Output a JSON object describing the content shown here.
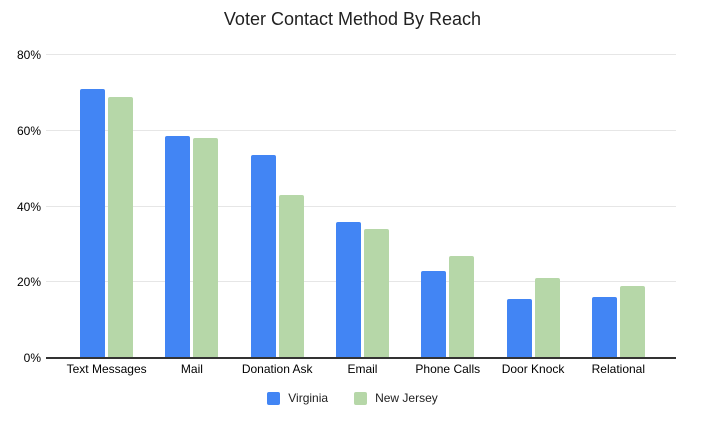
{
  "title": "Voter Contact Method By Reach",
  "colors": {
    "virginia": "#4285f4",
    "new_jersey": "#b6d7a8",
    "gridline": "#e6e6e6",
    "axis_line": "#333333",
    "text": "#000000",
    "title_text": "#212121"
  },
  "chart_data": {
    "type": "bar",
    "title": "Voter Contact Method By Reach",
    "categories": [
      "Text Messages",
      "Mail",
      "Donation Ask",
      "Email",
      "Phone Calls",
      "Door Knock",
      "Relational"
    ],
    "series": [
      {
        "name": "Virginia",
        "color": "#4285f4",
        "values": [
          71,
          58.5,
          53.5,
          36,
          23,
          15.5,
          16
        ]
      },
      {
        "name": "New Jersey",
        "color": "#b6d7a8",
        "values": [
          69,
          58,
          43,
          34,
          27,
          21,
          19
        ]
      }
    ],
    "xlabel": "",
    "ylabel": "",
    "ylim": [
      0,
      80
    ],
    "ytick_values": [
      0,
      20,
      40,
      60,
      80
    ],
    "ytick_labels": [
      "0%",
      "20%",
      "40%",
      "60%",
      "80%"
    ],
    "grid": true,
    "legend_position": "bottom"
  }
}
